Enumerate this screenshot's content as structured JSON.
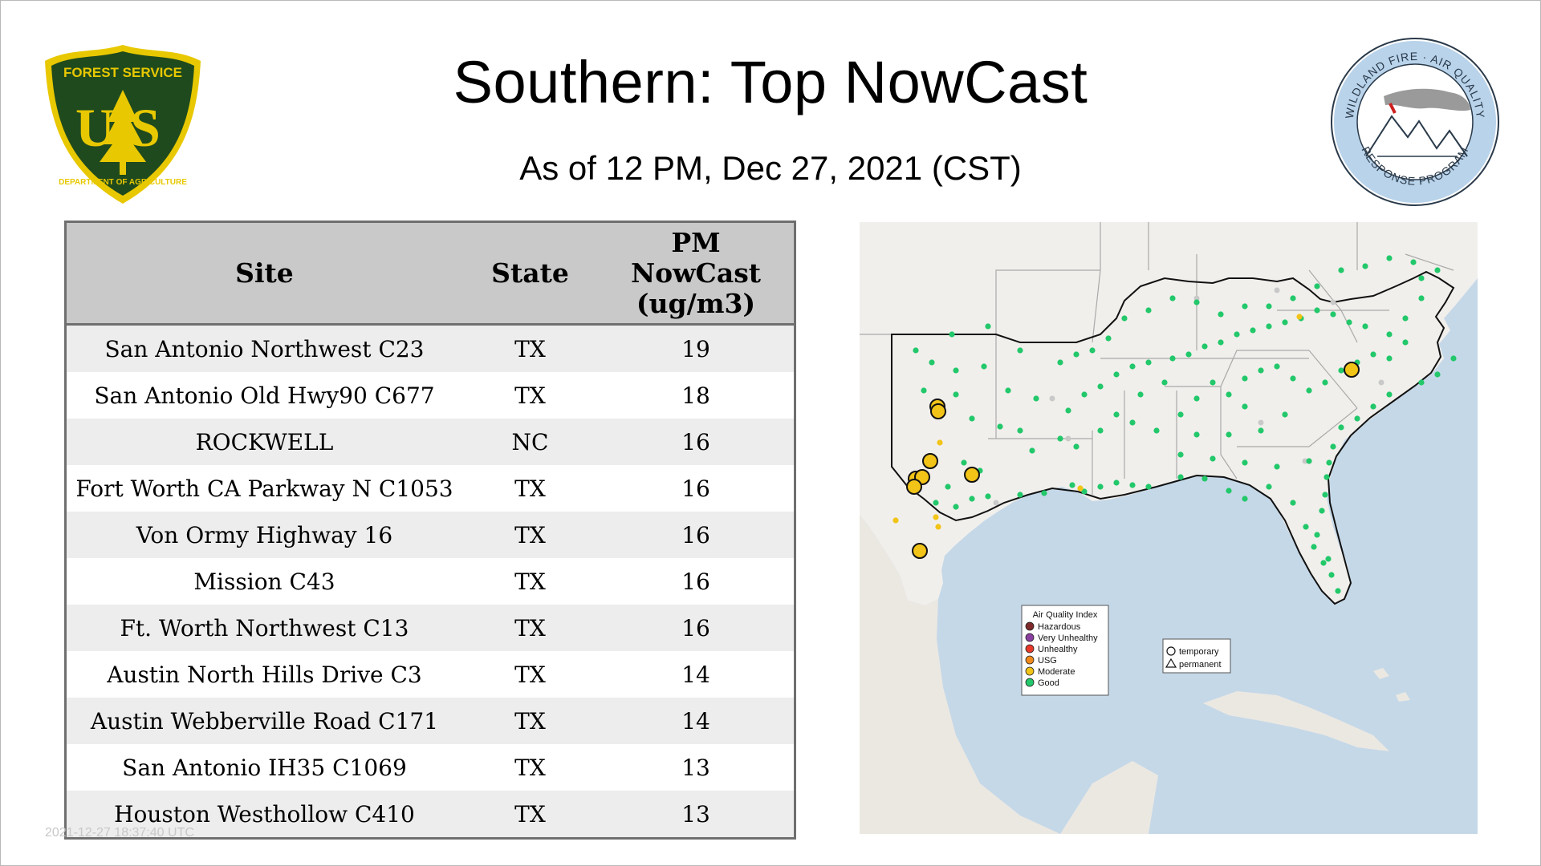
{
  "title": "Southern: Top NowCast",
  "subtitle": "As of 12 PM, Dec 27, 2021 (CST)",
  "logos": {
    "forest_service": {
      "top_text": "FOREST SERVICE",
      "initials": "US",
      "bottom_text": "DEPARTMENT OF AGRICULTURE",
      "colors": {
        "shield": "#1f4a1d",
        "gold": "#e8c800"
      }
    },
    "wildland": {
      "top_text": "WILDLAND FIRE · AIR QUALITY",
      "bottom_text": "RESPONSE PROGRAM",
      "colors": {
        "ring": "#b9d3ea",
        "ink": "#2a3a4a"
      }
    }
  },
  "table": {
    "headers": {
      "site": "Site",
      "state": "State",
      "pm_line1": "PM",
      "pm_line2": "NowCast",
      "pm_line3": "(ug/m3)"
    },
    "rows": [
      {
        "site": "San Antonio Northwest C23",
        "state": "TX",
        "pm": "19"
      },
      {
        "site": "San Antonio Old Hwy90 C677",
        "state": "TX",
        "pm": "18"
      },
      {
        "site": "ROCKWELL",
        "state": "NC",
        "pm": "16"
      },
      {
        "site": "Fort Worth CA Parkway N C1053",
        "state": "TX",
        "pm": "16"
      },
      {
        "site": "Von Ormy Highway 16",
        "state": "TX",
        "pm": "16"
      },
      {
        "site": "Mission C43",
        "state": "TX",
        "pm": "16"
      },
      {
        "site": "Ft. Worth Northwest C13",
        "state": "TX",
        "pm": "16"
      },
      {
        "site": "Austin North Hills Drive C3",
        "state": "TX",
        "pm": "14"
      },
      {
        "site": "Austin Webberville Road C171",
        "state": "TX",
        "pm": "14"
      },
      {
        "site": "San Antonio IH35 C1069",
        "state": "TX",
        "pm": "13"
      },
      {
        "site": "Houston Westhollow C410",
        "state": "TX",
        "pm": "13"
      }
    ]
  },
  "watermark": "2021-12-27 18:37:40 UTC",
  "map": {
    "legend": {
      "title": "Air Quality Index",
      "items": [
        {
          "label": "Hazardous",
          "color": "#7e2a2a"
        },
        {
          "label": "Very Unhealthy",
          "color": "#8a3fa0"
        },
        {
          "label": "Unhealthy",
          "color": "#e8392a"
        },
        {
          "label": "USG",
          "color": "#f08a1c"
        },
        {
          "label": "Moderate",
          "color": "#f2c418"
        },
        {
          "label": "Good",
          "color": "#22c86a"
        }
      ],
      "shape_items": [
        {
          "label": "temporary",
          "shape": "circle"
        },
        {
          "label": "permanent",
          "shape": "triangle"
        }
      ]
    },
    "colors": {
      "water": "#c5d8e8",
      "land": "#f1efec",
      "border": "#a9a9a9",
      "region": "#111111",
      "good": "#22c86a",
      "moderate": "#f2c418",
      "nodata": "#c9c9c9"
    }
  }
}
